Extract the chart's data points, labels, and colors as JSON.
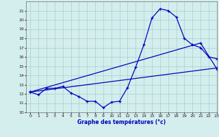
{
  "xlabel": "Graphe des températures (°c)",
  "bg_color": "#d4eeee",
  "grid_color": "#aacccc",
  "line_color": "#0000bb",
  "hours": [
    0,
    1,
    2,
    3,
    4,
    5,
    6,
    7,
    8,
    9,
    10,
    11,
    12,
    13,
    14,
    15,
    16,
    17,
    18,
    19,
    20,
    21,
    22,
    23
  ],
  "line1": [
    12.2,
    11.9,
    12.6,
    12.6,
    12.8,
    12.1,
    11.7,
    11.2,
    11.2,
    10.5,
    11.1,
    11.2,
    12.7,
    14.9,
    17.3,
    20.2,
    21.2,
    21.0,
    20.3,
    18.0,
    17.3,
    17.0,
    16.0,
    15.8
  ],
  "line2_x": [
    0,
    21,
    23
  ],
  "line2_y": [
    12.2,
    17.5,
    14.7
  ],
  "line3_x": [
    0,
    23
  ],
  "line3_y": [
    12.2,
    14.8
  ],
  "ylim": [
    10,
    22
  ],
  "yticks": [
    10,
    11,
    12,
    13,
    14,
    15,
    16,
    17,
    18,
    19,
    20,
    21
  ],
  "xlim": [
    -0.5,
    23
  ],
  "xticks": [
    0,
    1,
    2,
    3,
    4,
    5,
    6,
    7,
    8,
    9,
    10,
    11,
    12,
    13,
    14,
    15,
    16,
    17,
    18,
    19,
    20,
    21,
    22,
    23
  ]
}
